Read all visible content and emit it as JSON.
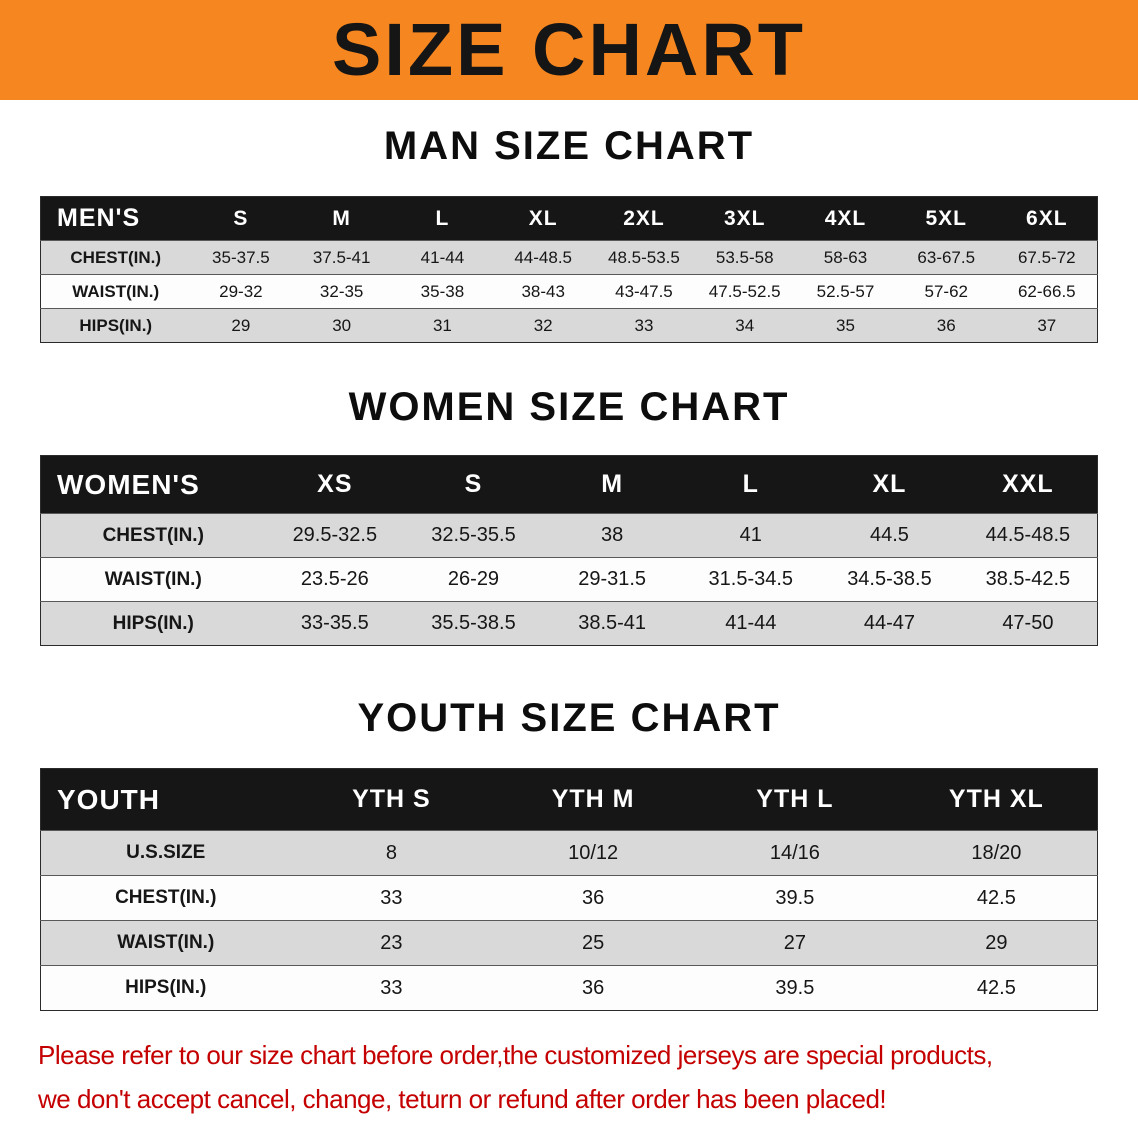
{
  "banner": {
    "title": "SIZE CHART",
    "bg_color": "#f6861f",
    "text_color": "#151515"
  },
  "sections": [
    {
      "heading": "MAN SIZE CHART",
      "table": {
        "header": [
          "MEN'S",
          "S",
          "M",
          "L",
          "XL",
          "2XL",
          "3XL",
          "4XL",
          "5XL",
          "6XL"
        ],
        "rows": [
          [
            "CHEST(IN.)",
            "35-37.5",
            "37.5-41",
            "41-44",
            "44-48.5",
            "48.5-53.5",
            "53.5-58",
            "58-63",
            "63-67.5",
            "67.5-72"
          ],
          [
            "WAIST(IN.)",
            "29-32",
            "32-35",
            "35-38",
            "38-43",
            "43-47.5",
            "47.5-52.5",
            "52.5-57",
            "57-62",
            "62-66.5"
          ],
          [
            "HIPS(IN.)",
            "29",
            "30",
            "31",
            "32",
            "33",
            "34",
            "35",
            "36",
            "37"
          ]
        ]
      }
    },
    {
      "heading": "WOMEN SIZE CHART",
      "table": {
        "header": [
          "WOMEN'S",
          "XS",
          "S",
          "M",
          "L",
          "XL",
          "XXL"
        ],
        "rows": [
          [
            "CHEST(IN.)",
            "29.5-32.5",
            "32.5-35.5",
            "38",
            "41",
            "44.5",
            "44.5-48.5"
          ],
          [
            "WAIST(IN.)",
            "23.5-26",
            "26-29",
            "29-31.5",
            "31.5-34.5",
            "34.5-38.5",
            "38.5-42.5"
          ],
          [
            "HIPS(IN.)",
            "33-35.5",
            "35.5-38.5",
            "38.5-41",
            "41-44",
            "44-47",
            "47-50"
          ]
        ]
      }
    },
    {
      "heading": "YOUTH SIZE CHART",
      "table": {
        "header": [
          "YOUTH",
          "YTH S",
          "YTH M",
          "YTH L",
          "YTH XL"
        ],
        "rows": [
          [
            "U.S.SIZE",
            "8",
            "10/12",
            "14/16",
            "18/20"
          ],
          [
            "CHEST(IN.)",
            "33",
            "36",
            "39.5",
            "42.5"
          ],
          [
            "WAIST(IN.)",
            "23",
            "25",
            "27",
            "29"
          ],
          [
            "HIPS(IN.)",
            "33",
            "36",
            "39.5",
            "42.5"
          ]
        ]
      }
    }
  ],
  "disclaimer": {
    "line1": "Please refer to our size chart before order,the customized jerseys are special products,",
    "line2": "we don't accept cancel, change, teturn or refund after order has been placed!",
    "color": "#c40000"
  },
  "colors": {
    "header_bg": "#161616",
    "header_text": "#ffffff",
    "row_shaded": "#d9d9d9",
    "row_plain": "#fdfdfd"
  }
}
